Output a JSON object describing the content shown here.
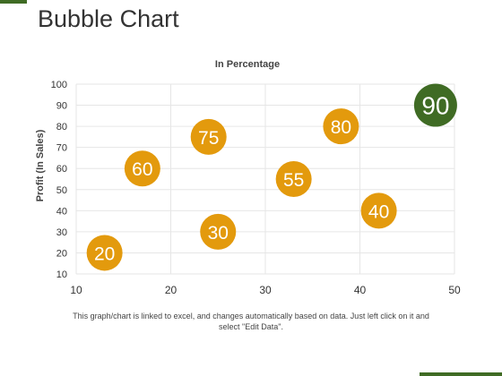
{
  "page": {
    "title": "Bubble Chart"
  },
  "chart_data": {
    "type": "scatter",
    "subtitle": "In Percentage",
    "xlabel": "",
    "ylabel": "Profit  (In Sales)",
    "xlim": [
      10,
      50
    ],
    "ylim": [
      10,
      100
    ],
    "x_ticks": [
      10,
      20,
      30,
      40,
      50
    ],
    "y_ticks": [
      10,
      20,
      30,
      40,
      50,
      60,
      70,
      80,
      90,
      100
    ],
    "grid": true,
    "points": [
      {
        "x": 13,
        "y": 20,
        "label": "20",
        "color": "#e39a0d"
      },
      {
        "x": 17,
        "y": 60,
        "label": "60",
        "color": "#e39a0d"
      },
      {
        "x": 24,
        "y": 75,
        "label": "75",
        "color": "#e39a0d"
      },
      {
        "x": 25,
        "y": 30,
        "label": "30",
        "color": "#e39a0d"
      },
      {
        "x": 33,
        "y": 55,
        "label": "55",
        "color": "#e39a0d"
      },
      {
        "x": 38,
        "y": 80,
        "label": "80",
        "color": "#e39a0d"
      },
      {
        "x": 42,
        "y": 40,
        "label": "40",
        "color": "#e39a0d"
      },
      {
        "x": 48,
        "y": 90,
        "label": "90",
        "color": "#3f6b24"
      }
    ]
  },
  "footnote": "This graph/chart is linked to excel, and changes automatically based on data. Just left click on it and select \"Edit Data\"."
}
